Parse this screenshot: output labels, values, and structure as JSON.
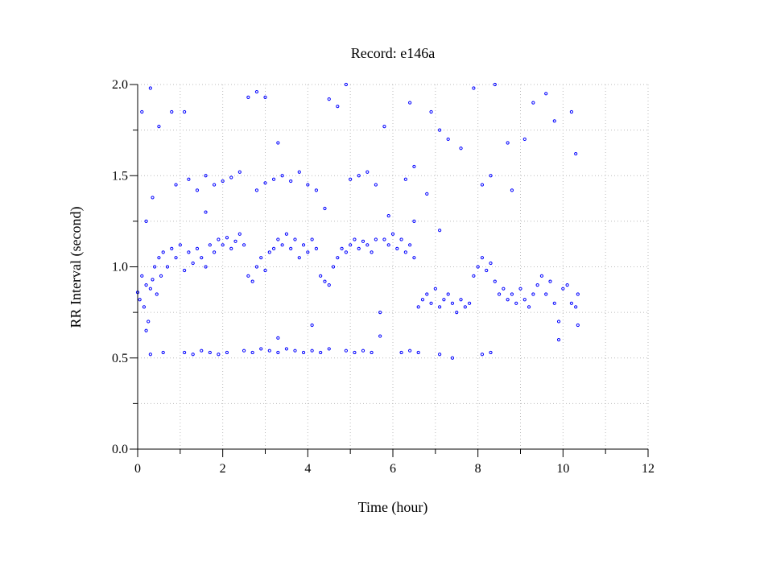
{
  "chart_data": {
    "type": "scatter",
    "title": "Record:  e146a",
    "xlabel": "Time (hour)",
    "ylabel": "RR Interval (second)",
    "xlim": [
      0,
      12
    ],
    "ylim": [
      0.0,
      2.0
    ],
    "xticks": [
      0,
      2,
      4,
      6,
      8,
      10,
      12
    ],
    "xtick_labels": [
      "0",
      "2",
      "4",
      "6",
      "8",
      "10",
      "12"
    ],
    "yticks": [
      0.0,
      0.5,
      1.0,
      1.5,
      2.0
    ],
    "ytick_labels": [
      "0.0",
      "0.5",
      "1.0",
      "1.5",
      "2.0"
    ],
    "grid": true,
    "marker_color": "#0000ff",
    "series": [
      {
        "points": [
          [
            0.0,
            0.86
          ],
          [
            0.05,
            0.82
          ],
          [
            0.1,
            0.95
          ],
          [
            0.15,
            0.78
          ],
          [
            0.2,
            0.9
          ],
          [
            0.25,
            0.7
          ],
          [
            0.3,
            0.88
          ],
          [
            0.35,
            0.93
          ],
          [
            0.4,
            1.0
          ],
          [
            0.45,
            0.85
          ],
          [
            0.5,
            1.05
          ],
          [
            0.55,
            0.95
          ],
          [
            0.6,
            1.08
          ],
          [
            0.7,
            1.0
          ],
          [
            0.8,
            1.1
          ],
          [
            0.9,
            1.05
          ],
          [
            1.0,
            1.12
          ],
          [
            1.1,
            0.98
          ],
          [
            1.2,
            1.08
          ],
          [
            1.3,
            1.02
          ],
          [
            1.4,
            1.1
          ],
          [
            1.5,
            1.05
          ],
          [
            1.6,
            1.0
          ],
          [
            1.7,
            1.12
          ],
          [
            1.8,
            1.08
          ],
          [
            1.9,
            1.15
          ],
          [
            2.0,
            1.12
          ],
          [
            2.1,
            1.16
          ],
          [
            2.2,
            1.1
          ],
          [
            2.3,
            1.14
          ],
          [
            2.4,
            1.18
          ],
          [
            2.5,
            1.12
          ],
          [
            2.6,
            0.95
          ],
          [
            2.7,
            0.92
          ],
          [
            2.8,
            1.0
          ],
          [
            2.9,
            1.05
          ],
          [
            3.0,
            0.98
          ],
          [
            3.1,
            1.08
          ],
          [
            3.2,
            1.1
          ],
          [
            3.3,
            1.15
          ],
          [
            3.4,
            1.12
          ],
          [
            3.5,
            1.18
          ],
          [
            3.6,
            1.1
          ],
          [
            3.7,
            1.15
          ],
          [
            3.8,
            1.05
          ],
          [
            3.9,
            1.12
          ],
          [
            4.0,
            1.08
          ],
          [
            4.1,
            1.15
          ],
          [
            4.2,
            1.1
          ],
          [
            4.3,
            0.95
          ],
          [
            4.4,
            0.92
          ],
          [
            4.5,
            0.9
          ],
          [
            4.6,
            1.0
          ],
          [
            4.7,
            1.05
          ],
          [
            4.8,
            1.1
          ],
          [
            4.9,
            1.08
          ],
          [
            5.0,
            1.12
          ],
          [
            5.1,
            1.15
          ],
          [
            5.2,
            1.1
          ],
          [
            5.3,
            1.14
          ],
          [
            5.4,
            1.12
          ],
          [
            5.5,
            1.08
          ],
          [
            5.6,
            1.15
          ],
          [
            5.7,
            0.75
          ],
          [
            5.8,
            1.15
          ],
          [
            5.9,
            1.12
          ],
          [
            6.0,
            1.18
          ],
          [
            6.1,
            1.1
          ],
          [
            6.2,
            1.15
          ],
          [
            6.3,
            1.08
          ],
          [
            6.4,
            1.12
          ],
          [
            6.5,
            1.05
          ],
          [
            6.6,
            0.78
          ],
          [
            6.7,
            0.82
          ],
          [
            6.8,
            0.85
          ],
          [
            6.9,
            0.8
          ],
          [
            7.0,
            0.88
          ],
          [
            7.1,
            0.78
          ],
          [
            7.2,
            0.82
          ],
          [
            7.3,
            0.85
          ],
          [
            7.4,
            0.8
          ],
          [
            7.5,
            0.75
          ],
          [
            7.6,
            0.82
          ],
          [
            7.7,
            0.78
          ],
          [
            7.8,
            0.8
          ],
          [
            7.9,
            0.95
          ],
          [
            8.0,
            1.0
          ],
          [
            8.1,
            1.05
          ],
          [
            8.2,
            0.98
          ],
          [
            8.3,
            1.02
          ],
          [
            8.4,
            0.92
          ],
          [
            8.5,
            0.85
          ],
          [
            8.6,
            0.88
          ],
          [
            8.7,
            0.82
          ],
          [
            8.8,
            0.85
          ],
          [
            8.9,
            0.8
          ],
          [
            9.0,
            0.88
          ],
          [
            9.1,
            0.82
          ],
          [
            9.2,
            0.78
          ],
          [
            9.3,
            0.85
          ],
          [
            9.4,
            0.9
          ],
          [
            9.5,
            0.95
          ],
          [
            9.6,
            0.85
          ],
          [
            9.7,
            0.92
          ],
          [
            9.8,
            0.8
          ],
          [
            9.9,
            0.7
          ],
          [
            10.0,
            0.88
          ],
          [
            10.1,
            0.9
          ],
          [
            10.2,
            0.8
          ],
          [
            10.3,
            0.78
          ],
          [
            10.35,
            0.85
          ],
          [
            0.3,
            0.52
          ],
          [
            0.6,
            0.53
          ],
          [
            1.1,
            0.53
          ],
          [
            1.3,
            0.52
          ],
          [
            1.5,
            0.54
          ],
          [
            1.7,
            0.53
          ],
          [
            1.9,
            0.52
          ],
          [
            2.1,
            0.53
          ],
          [
            2.5,
            0.54
          ],
          [
            2.7,
            0.53
          ],
          [
            2.9,
            0.55
          ],
          [
            3.1,
            0.54
          ],
          [
            3.3,
            0.53
          ],
          [
            3.5,
            0.55
          ],
          [
            3.7,
            0.54
          ],
          [
            3.9,
            0.53
          ],
          [
            4.1,
            0.54
          ],
          [
            4.3,
            0.53
          ],
          [
            4.5,
            0.55
          ],
          [
            4.9,
            0.54
          ],
          [
            5.1,
            0.53
          ],
          [
            5.3,
            0.54
          ],
          [
            5.5,
            0.53
          ],
          [
            6.2,
            0.53
          ],
          [
            6.4,
            0.54
          ],
          [
            6.6,
            0.53
          ],
          [
            7.1,
            0.52
          ],
          [
            7.4,
            0.5
          ],
          [
            8.1,
            0.52
          ],
          [
            8.3,
            0.53
          ],
          [
            0.9,
            1.45
          ],
          [
            1.2,
            1.48
          ],
          [
            1.4,
            1.42
          ],
          [
            1.6,
            1.5
          ],
          [
            1.8,
            1.45
          ],
          [
            2.0,
            1.47
          ],
          [
            2.2,
            1.49
          ],
          [
            2.4,
            1.52
          ],
          [
            2.8,
            1.42
          ],
          [
            3.0,
            1.46
          ],
          [
            3.2,
            1.48
          ],
          [
            3.4,
            1.5
          ],
          [
            3.6,
            1.47
          ],
          [
            3.8,
            1.52
          ],
          [
            4.0,
            1.45
          ],
          [
            4.2,
            1.42
          ],
          [
            5.0,
            1.48
          ],
          [
            5.2,
            1.5
          ],
          [
            5.4,
            1.52
          ],
          [
            5.6,
            1.45
          ],
          [
            6.3,
            1.48
          ],
          [
            6.5,
            1.55
          ],
          [
            6.8,
            1.4
          ],
          [
            8.1,
            1.45
          ],
          [
            8.3,
            1.5
          ],
          [
            0.1,
            1.85
          ],
          [
            0.3,
            1.98
          ],
          [
            0.5,
            1.77
          ],
          [
            0.8,
            1.85
          ],
          [
            1.1,
            1.85
          ],
          [
            2.6,
            1.93
          ],
          [
            2.8,
            1.96
          ],
          [
            3.0,
            1.93
          ],
          [
            3.3,
            1.68
          ],
          [
            4.5,
            1.92
          ],
          [
            4.7,
            1.88
          ],
          [
            4.9,
            2.0
          ],
          [
            5.8,
            1.77
          ],
          [
            6.4,
            1.9
          ],
          [
            6.9,
            1.85
          ],
          [
            7.1,
            1.75
          ],
          [
            7.3,
            1.7
          ],
          [
            7.6,
            1.65
          ],
          [
            7.9,
            1.98
          ],
          [
            8.4,
            2.0
          ],
          [
            8.7,
            1.68
          ],
          [
            9.1,
            1.7
          ],
          [
            9.3,
            1.9
          ],
          [
            9.6,
            1.95
          ],
          [
            9.8,
            1.8
          ],
          [
            10.2,
            1.85
          ],
          [
            10.3,
            1.62
          ],
          [
            0.2,
            1.25
          ],
          [
            0.35,
            1.38
          ],
          [
            1.6,
            1.3
          ],
          [
            4.4,
            1.32
          ],
          [
            5.9,
            1.28
          ],
          [
            6.5,
            1.25
          ],
          [
            7.1,
            1.2
          ],
          [
            8.8,
            1.42
          ],
          [
            0.2,
            0.65
          ],
          [
            5.7,
            0.62
          ],
          [
            9.9,
            0.6
          ],
          [
            10.35,
            0.68
          ],
          [
            3.3,
            0.61
          ],
          [
            4.1,
            0.68
          ]
        ]
      }
    ]
  }
}
